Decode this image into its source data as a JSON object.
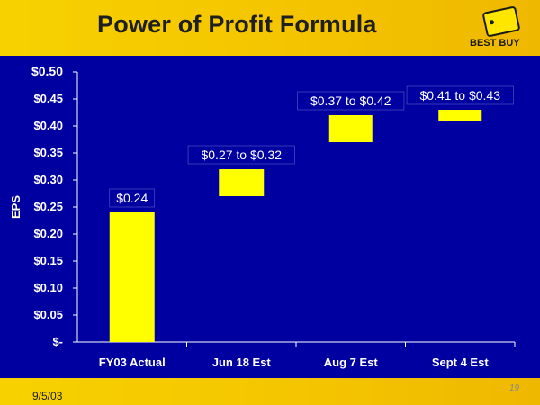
{
  "slide": {
    "title": "Power of Profit Formula",
    "logo_text": "BEST BUY",
    "date": "9/5/03",
    "page_number": "19"
  },
  "colors": {
    "plot_background": "#0000a0",
    "bar": "#ffff00",
    "header": "#f4c400",
    "text": "#ffffff"
  },
  "chart_data": {
    "type": "bar",
    "title": "",
    "ylabel": "EPS",
    "xlabel": "",
    "ylim": [
      0,
      0.5
    ],
    "yticks": [
      0,
      0.05,
      0.1,
      0.15,
      0.2,
      0.25,
      0.3,
      0.35,
      0.4,
      0.45,
      0.5
    ],
    "ytick_labels": [
      "$-",
      "$0.05",
      "$0.10",
      "$0.15",
      "$0.20",
      "$0.25",
      "$0.30",
      "$0.35",
      "$0.40",
      "$0.45",
      "$0.50"
    ],
    "grid": false,
    "legend": "none",
    "categories": [
      "FY03 Actual",
      "Jun 18 Est",
      "Aug 7 Est",
      "Sept 4 Est"
    ],
    "ranges": [
      {
        "low": 0,
        "high": 0.24,
        "label": "$0.24"
      },
      {
        "low": 0.27,
        "high": 0.32,
        "label": "$0.27 to $0.32"
      },
      {
        "low": 0.37,
        "high": 0.42,
        "label": "$0.37 to $0.42"
      },
      {
        "low": 0.41,
        "high": 0.43,
        "label": "$0.41 to $0.43"
      }
    ]
  }
}
